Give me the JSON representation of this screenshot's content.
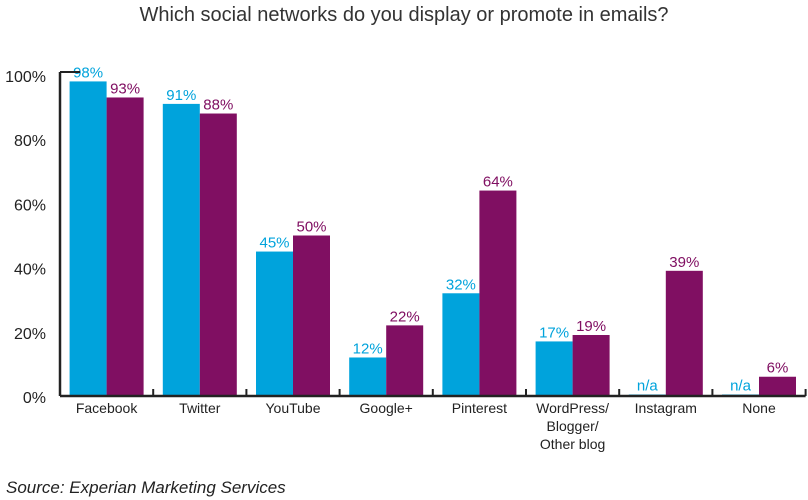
{
  "chart_data": {
    "type": "bar",
    "title": "Which social networks do you display or promote in emails?",
    "source": "Source: Experian Marketing Services",
    "xlabel": "",
    "ylabel": "",
    "ylim": [
      0,
      100
    ],
    "yticks": [
      "0%",
      "20%",
      "40%",
      "60%",
      "80%",
      "100%"
    ],
    "categories": [
      [
        "Facebook"
      ],
      [
        "Twitter"
      ],
      [
        "YouTube"
      ],
      [
        "Google+"
      ],
      [
        "Pinterest"
      ],
      [
        "WordPress/",
        "Blogger/",
        "Other blog"
      ],
      [
        "Instagram"
      ],
      [
        "None"
      ]
    ],
    "series": [
      {
        "color": "#00a3dc",
        "values": [
          98,
          91,
          45,
          12,
          32,
          17,
          null,
          null
        ],
        "labels": [
          "98%",
          "91%",
          "45%",
          "12%",
          "32%",
          "17%",
          "n/a",
          "n/a"
        ]
      },
      {
        "color": "#800f62",
        "values": [
          93,
          88,
          50,
          22,
          64,
          19,
          39,
          6
        ],
        "labels": [
          "93%",
          "88%",
          "50%",
          "22%",
          "64%",
          "19%",
          "39%",
          "6%"
        ]
      }
    ],
    "grid": false,
    "legend": "none"
  }
}
